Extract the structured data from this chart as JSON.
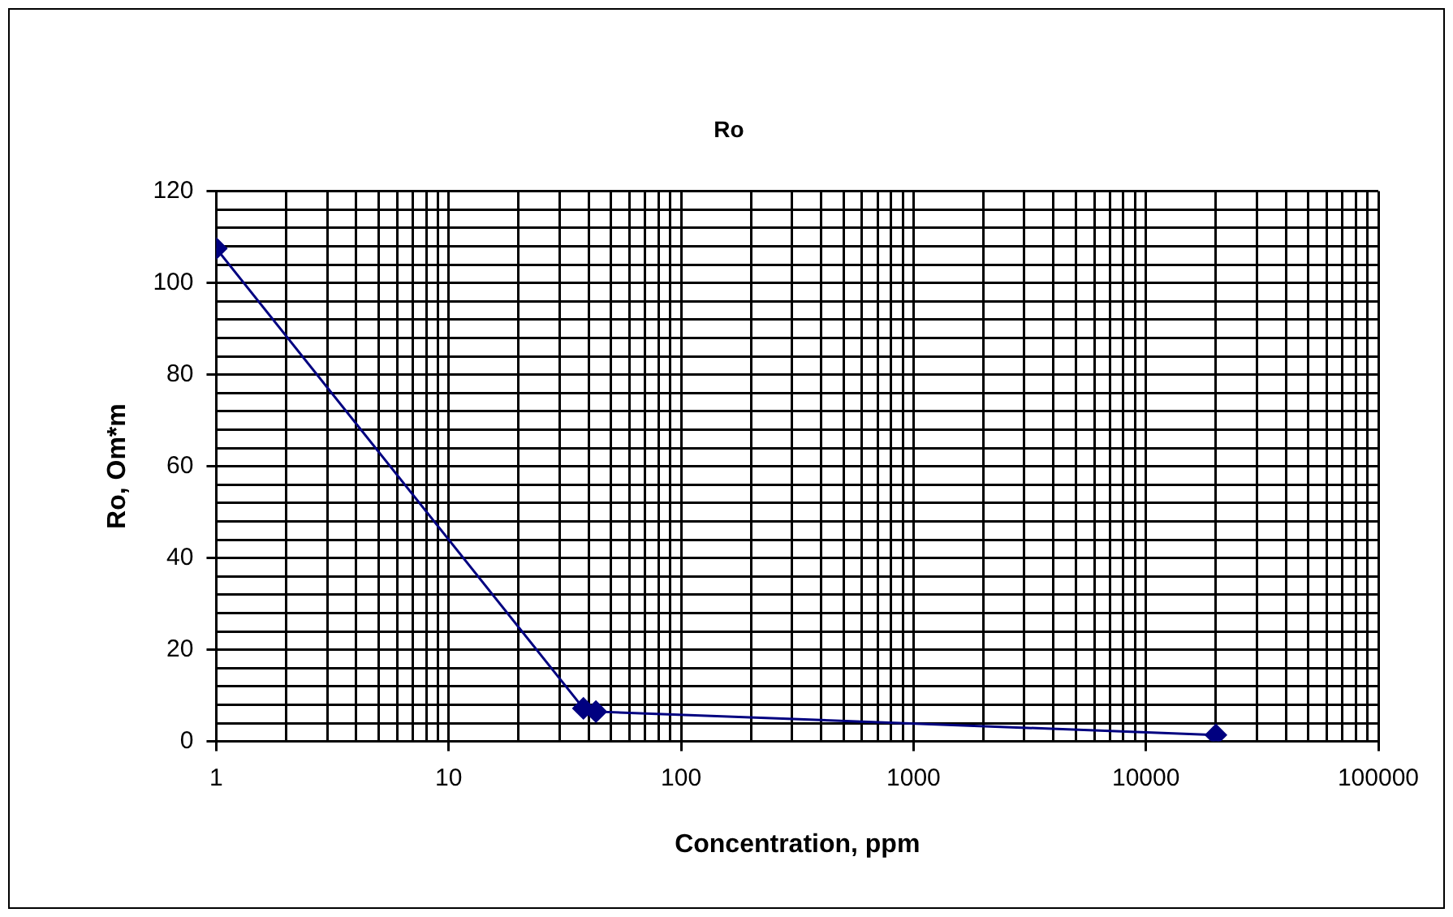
{
  "chart_data": {
    "type": "line",
    "title": "Ro",
    "xlabel": "Concentration, ppm",
    "ylabel": "Ro, Om*m",
    "x": [
      1,
      38,
      43,
      20000
    ],
    "series": [
      {
        "color": "#000080",
        "values": [
          107.5,
          7.2,
          6.5,
          1.4
        ]
      }
    ],
    "log": "x",
    "marker": "diamond",
    "line_style": "solid",
    "grid": true,
    "legend": false,
    "xlim": [
      1,
      100000
    ],
    "xticks": [
      1,
      {
        "value": 2,
        "label": null
      },
      {
        "value": 3,
        "label": null
      },
      {
        "value": 4,
        "label": null
      },
      {
        "value": 5,
        "label": null
      },
      {
        "value": 6,
        "label": null
      },
      {
        "value": 7,
        "label": null
      },
      {
        "value": 8,
        "label": null
      },
      {
        "value": 9,
        "label": null
      },
      10,
      {
        "value": 20,
        "label": null
      },
      {
        "value": 30,
        "label": null
      },
      {
        "value": 40,
        "label": null
      },
      {
        "value": 50,
        "label": null
      },
      {
        "value": 60,
        "label": null
      },
      {
        "value": 70,
        "label": null
      },
      {
        "value": 80,
        "label": null
      },
      {
        "value": 90,
        "label": null
      },
      100,
      {
        "value": 200,
        "label": null
      },
      {
        "value": 300,
        "label": null
      },
      {
        "value": 400,
        "label": null
      },
      {
        "value": 500,
        "label": null
      },
      {
        "value": 600,
        "label": null
      },
      {
        "value": 700,
        "label": null
      },
      {
        "value": 800,
        "label": null
      },
      {
        "value": 900,
        "label": null
      },
      1000,
      {
        "value": 2000,
        "label": null
      },
      {
        "value": 3000,
        "label": null
      },
      {
        "value": 4000,
        "label": null
      },
      {
        "value": 5000,
        "label": null
      },
      {
        "value": 6000,
        "label": null
      },
      {
        "value": 7000,
        "label": null
      },
      {
        "value": 8000,
        "label": null
      },
      {
        "value": 9000,
        "label": null
      },
      10000,
      {
        "value": 20000,
        "label": null
      },
      {
        "value": 30000,
        "label": null
      },
      {
        "value": 40000,
        "label": null
      },
      {
        "value": 50000,
        "label": null
      },
      {
        "value": 60000,
        "label": null
      },
      {
        "value": 70000,
        "label": null
      },
      {
        "value": 80000,
        "label": null
      },
      {
        "value": 90000,
        "label": null
      },
      100000
    ],
    "ylim": [
      0,
      120
    ],
    "yticks": [
      0,
      {
        "value": 4,
        "label": null
      },
      {
        "value": 8,
        "label": null
      },
      {
        "value": 12,
        "label": null
      },
      {
        "value": 16,
        "label": null
      },
      20,
      {
        "value": 24,
        "label": null
      },
      {
        "value": 28,
        "label": null
      },
      {
        "value": 32,
        "label": null
      },
      {
        "value": 36,
        "label": null
      },
      40,
      {
        "value": 44,
        "label": null
      },
      {
        "value": 48,
        "label": null
      },
      {
        "value": 52,
        "label": null
      },
      {
        "value": 56,
        "label": null
      },
      60,
      {
        "value": 64,
        "label": null
      },
      {
        "value": 68,
        "label": null
      },
      {
        "value": 72,
        "label": null
      },
      {
        "value": 76,
        "label": null
      },
      80,
      {
        "value": 84,
        "label": null
      },
      {
        "value": 88,
        "label": null
      },
      {
        "value": 92,
        "label": null
      },
      {
        "value": 96,
        "label": null
      },
      100,
      {
        "value": 104,
        "label": null
      },
      {
        "value": 108,
        "label": null
      },
      {
        "value": 112,
        "label": null
      },
      {
        "value": 116,
        "label": null
      },
      120
    ]
  }
}
